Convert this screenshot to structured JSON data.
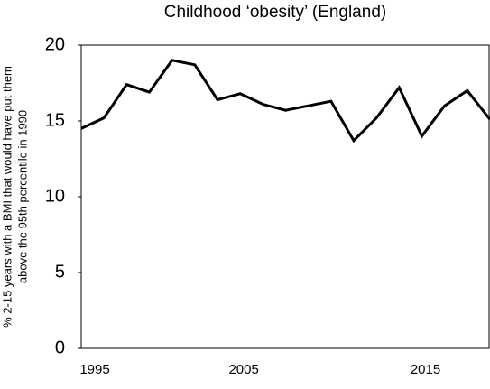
{
  "chart_data": {
    "type": "line",
    "title": "Childhood ‘obesity’ (England)",
    "y_label": [
      "% 2-15 years with a BMI that would have put them",
      "above the 95th percentile in 1990"
    ],
    "categories": [
      "1995",
      null,
      null,
      null,
      null,
      null,
      null,
      "2005",
      null,
      null,
      null,
      null,
      null,
      null,
      null,
      "2015",
      null,
      null,
      null
    ],
    "series": [
      {
        "name": "obesity",
        "color": "#000000",
        "values": [
          14.5,
          15.2,
          17.4,
          16.9,
          19.0,
          18.7,
          16.4,
          16.8,
          16.1,
          15.7,
          16.0,
          16.3,
          13.7,
          15.2,
          17.2,
          14.0,
          16.0,
          17.0,
          15.1
        ]
      }
    ],
    "ylim": [
      0,
      20
    ],
    "yticks": [
      0,
      5,
      10,
      15,
      20
    ]
  }
}
